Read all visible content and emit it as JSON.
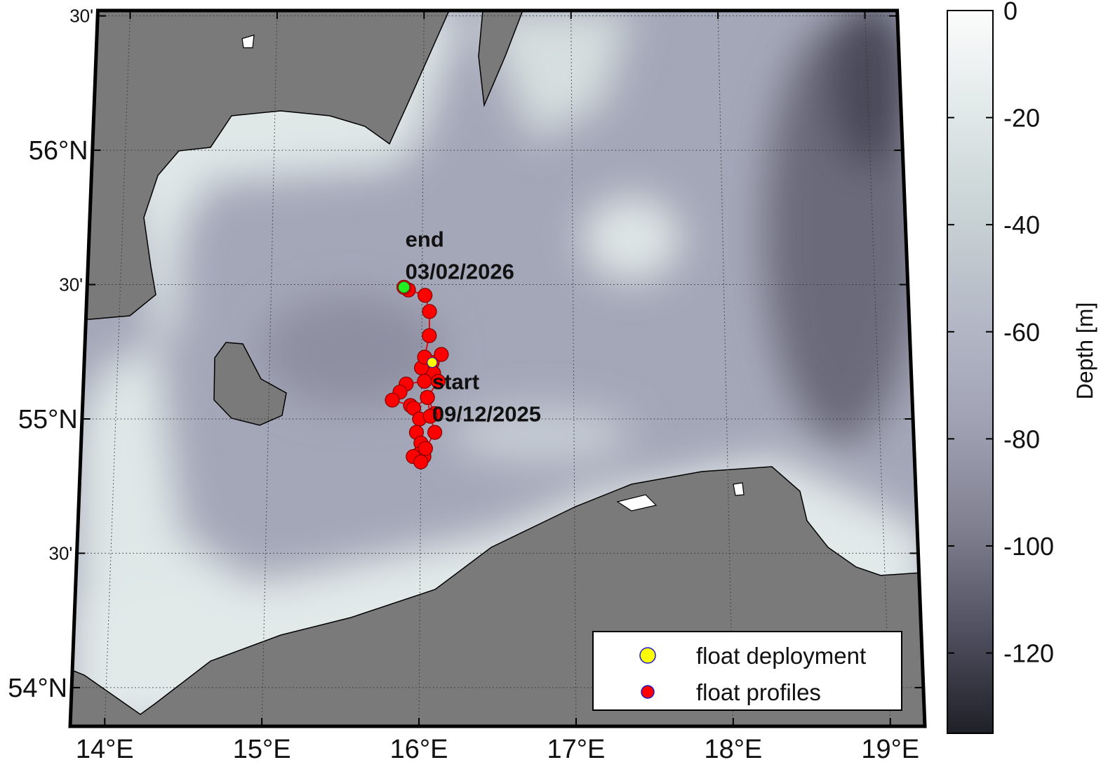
{
  "map": {
    "lonlim": [
      13.78,
      19.22
    ],
    "latlim": [
      53.856,
      56.52
    ],
    "lonticks": [
      {
        "value": 14,
        "label": "14°E"
      },
      {
        "value": 15,
        "label": "15°E"
      },
      {
        "value": 16,
        "label": "16°E"
      },
      {
        "value": 17,
        "label": "17°E"
      },
      {
        "value": 18,
        "label": "18°E"
      },
      {
        "value": 19,
        "label": "19°E"
      }
    ],
    "latticks": [
      {
        "value": 54,
        "label": "54°N"
      },
      {
        "value": 54.5,
        "label": "30'"
      },
      {
        "value": 55,
        "label": "55°N"
      },
      {
        "value": 55.5,
        "label": "30'"
      },
      {
        "value": 56,
        "label": "56°N"
      },
      {
        "value": 56.5,
        "label": "30'"
      }
    ],
    "grid": true,
    "colorbar": {
      "label": "Depth [m]",
      "lim": [
        -135,
        0
      ],
      "ticks": [
        0,
        -20,
        -40,
        -60,
        -80,
        -100,
        -120
      ],
      "colormap": [
        "#202028",
        "#505060",
        "#808090",
        "#a0a2b4",
        "#b4b8c6",
        "#c8d2d4",
        "#e0e8e8",
        "#fcfcfc"
      ]
    },
    "floats": {
      "track_color": "#e00000",
      "deployment": {
        "lon": 16.07,
        "lat": 55.21,
        "color": "#ffff00",
        "edge": "#1a1acc"
      },
      "end": {
        "lon": 15.88,
        "lat": 55.49,
        "color": "#22ee22"
      },
      "profiles": {
        "color": "#ff0000",
        "edge": "#800000",
        "lon": [
          16.07,
          16.13,
          16.08,
          16.0,
          16.02,
          15.9,
          15.86,
          15.81,
          15.93,
          15.95,
          16.04,
          16.09,
          15.99,
          15.97,
          16.0,
          15.99,
          16.02,
          15.95,
          16.0,
          16.03,
          16.09,
          16.06,
          16.04,
          16.11,
          16.02,
          16.05,
          16.05,
          16.02,
          15.91,
          15.88
        ],
        "lat": [
          55.21,
          55.24,
          55.17,
          55.19,
          55.14,
          55.13,
          55.1,
          55.07,
          55.05,
          55.04,
          55.08,
          55.02,
          55.0,
          54.95,
          54.91,
          54.87,
          54.86,
          54.86,
          54.84,
          54.89,
          54.95,
          55.01,
          55.08,
          55.14,
          55.23,
          55.31,
          55.4,
          55.46,
          55.48,
          55.49
        ]
      }
    },
    "annotations": {
      "end": [
        "end",
        "03/02/2026"
      ],
      "start": [
        "start",
        "09/12/2025"
      ],
      "color": "#1a1aff"
    },
    "legend": {
      "corner": "lower right",
      "entries": [
        {
          "name": "float deployment",
          "color": "#ffff00",
          "edge": "#1a1acc"
        },
        {
          "name": "float profiles",
          "color": "#ff0000",
          "edge": "#1a1acc"
        }
      ]
    }
  }
}
